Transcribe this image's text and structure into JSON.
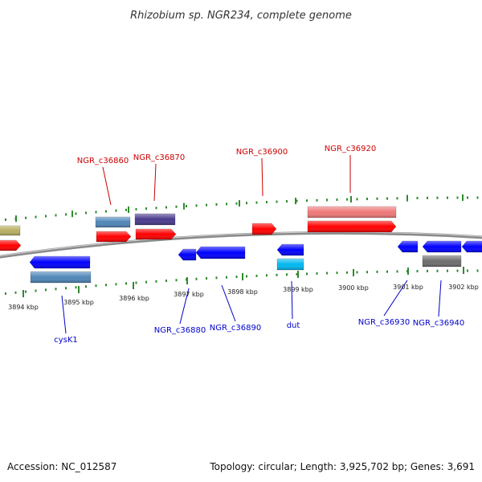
{
  "title": "Rhizobium sp. NGR234, complete genome",
  "footer": {
    "accession": "Accession: NC_012587",
    "summary": "Topology: circular; Length: 3,925,702 bp; Genes: 3,691"
  },
  "colors": {
    "backbone": "#8a8a8a",
    "tick": "#2e8b2e",
    "red_gene": "#ff0000",
    "blue_gene": "#0000ff",
    "steel": "#4f86b8",
    "purple": "#4a3a8c",
    "pink": "#f07878",
    "cyan": "#00b8f0",
    "olive": "#b8b060",
    "grey": "#6e6e6e",
    "label_red": "#cc0000",
    "label_blue": "#0000cc"
  },
  "ticks": [
    {
      "label": "3894 kbp"
    },
    {
      "label": "3895 kbp"
    },
    {
      "label": "3896 kbp"
    },
    {
      "label": "3897 kbp"
    },
    {
      "label": "3898 kbp"
    },
    {
      "label": "3899 kbp"
    },
    {
      "label": "3900 kbp"
    },
    {
      "label": "3901 kbp"
    },
    {
      "label": "3902 kbp"
    }
  ],
  "features": [
    {
      "name": "olive-feature",
      "color": "olive"
    },
    {
      "name": "red-feature-a",
      "color": "red_gene"
    },
    {
      "name": "steel-feature-a",
      "color": "steel"
    },
    {
      "name": "red-feature-b",
      "color": "red_gene"
    },
    {
      "name": "purple-feature",
      "color": "purple"
    },
    {
      "name": "red-feature-c",
      "color": "red_gene"
    },
    {
      "name": "red-feature-d",
      "color": "red_gene"
    },
    {
      "name": "pink-feature",
      "color": "pink"
    },
    {
      "name": "red-feature-e",
      "color": "red_gene"
    },
    {
      "name": "blue-feature-a",
      "color": "blue_gene"
    },
    {
      "name": "steel-feature-b",
      "color": "steel"
    },
    {
      "name": "blue-feature-b",
      "color": "blue_gene"
    },
    {
      "name": "blue-feature-c",
      "color": "blue_gene"
    },
    {
      "name": "blue-feature-d",
      "color": "blue_gene"
    },
    {
      "name": "cyan-feature",
      "color": "cyan"
    },
    {
      "name": "blue-feature-e",
      "color": "blue_gene"
    },
    {
      "name": "blue-feature-f",
      "color": "blue_gene"
    },
    {
      "name": "grey-feature",
      "color": "grey"
    },
    {
      "name": "blue-feature-g",
      "color": "blue_gene"
    }
  ],
  "gene_labels": [
    {
      "text": "NGR_c36860",
      "strand": "top"
    },
    {
      "text": "NGR_c36870",
      "strand": "top"
    },
    {
      "text": "NGR_c36900",
      "strand": "top"
    },
    {
      "text": "NGR_c36920",
      "strand": "top"
    },
    {
      "text": "cysK1",
      "strand": "bottom"
    },
    {
      "text": "NGR_c36880",
      "strand": "bottom"
    },
    {
      "text": "NGR_c36890",
      "strand": "bottom"
    },
    {
      "text": "dut",
      "strand": "bottom"
    },
    {
      "text": "NGR_c36930",
      "strand": "bottom"
    },
    {
      "text": "NGR_c36940",
      "strand": "bottom"
    }
  ]
}
